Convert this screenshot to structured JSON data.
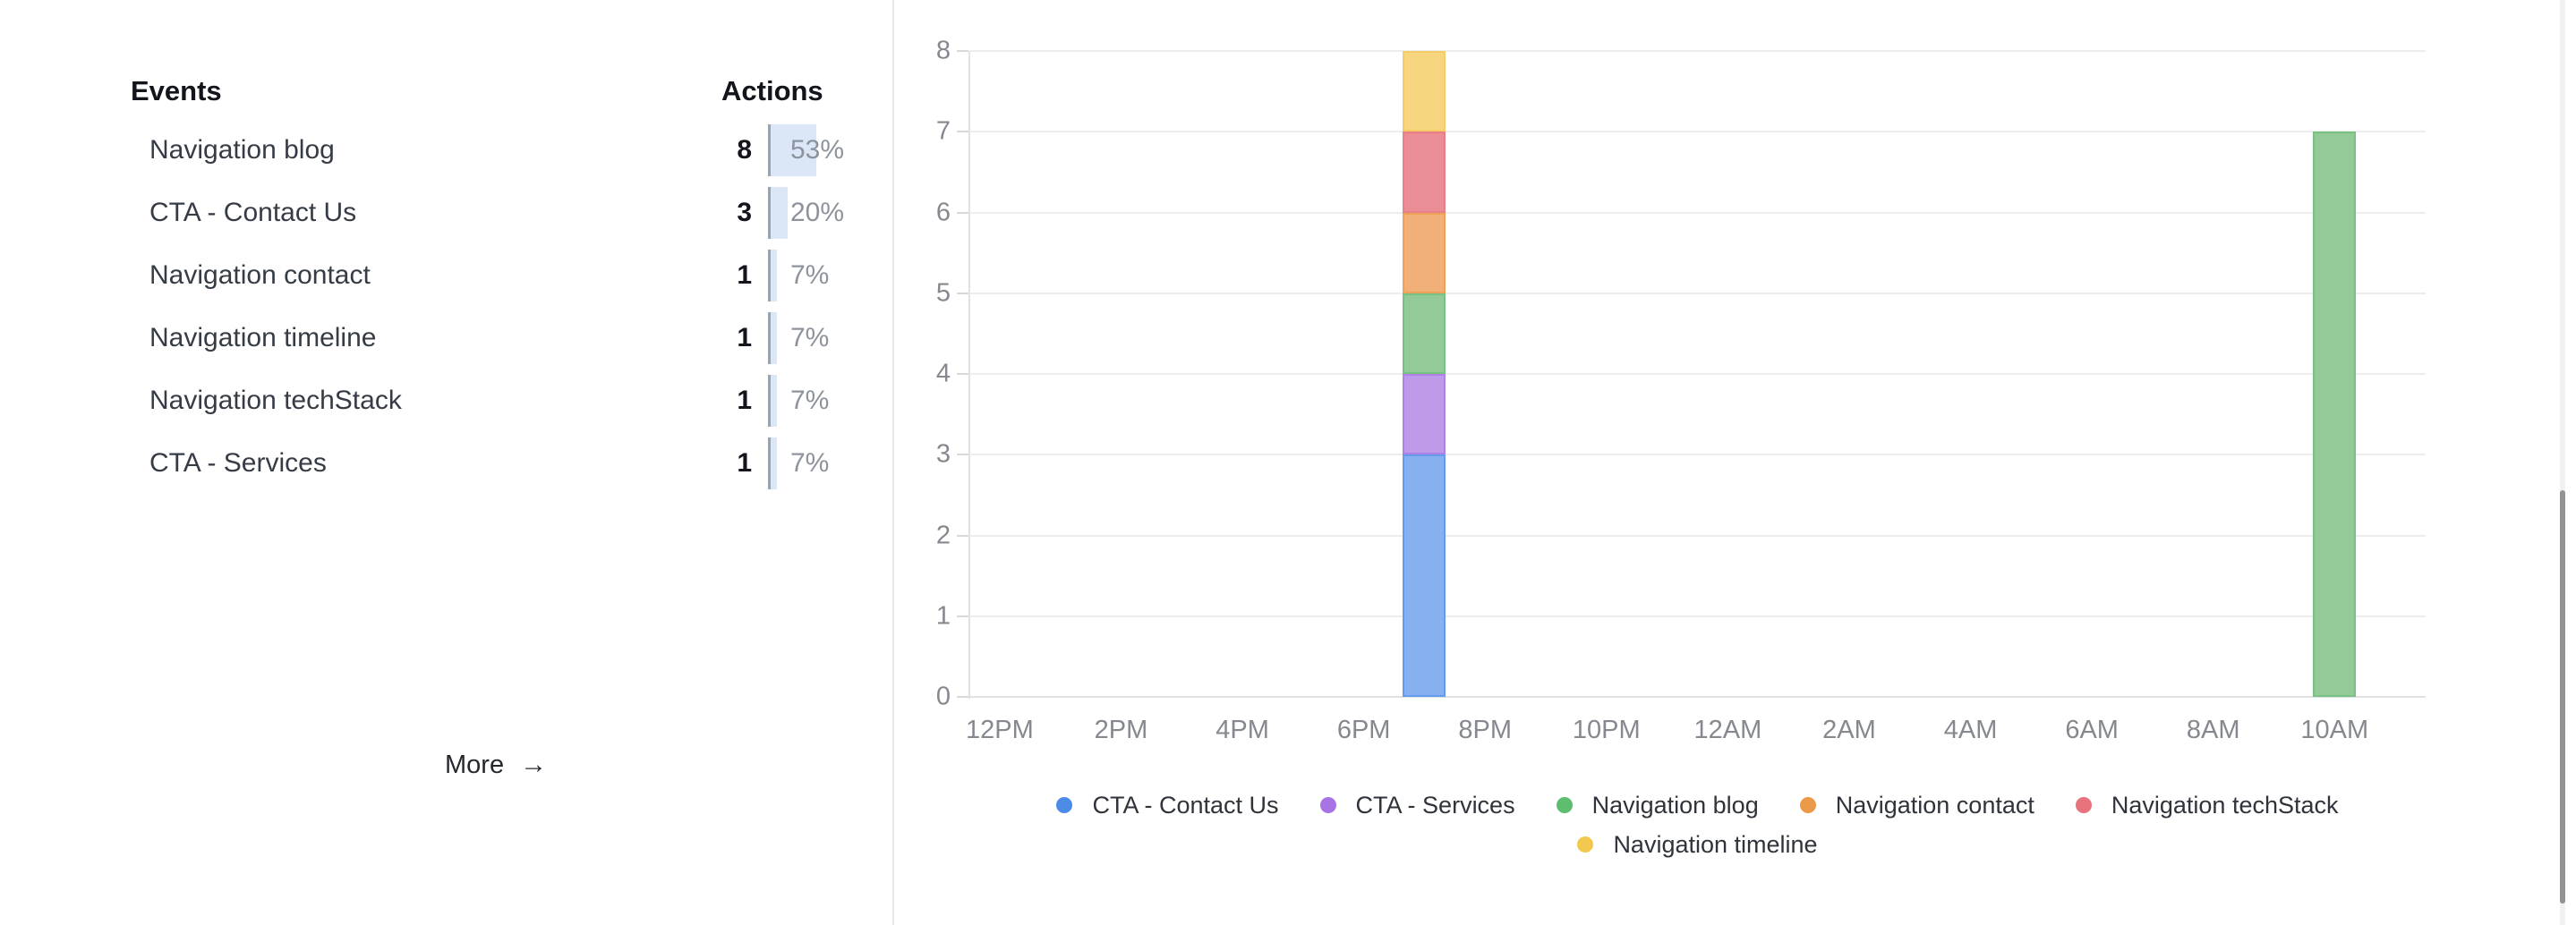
{
  "events_panel": {
    "events_header": "Events",
    "actions_header": "Actions",
    "rows": [
      {
        "name": "Navigation blog",
        "count": "8",
        "percent": "53%",
        "percent_value": 53
      },
      {
        "name": "CTA - Contact Us",
        "count": "3",
        "percent": "20%",
        "percent_value": 20
      },
      {
        "name": "Navigation contact",
        "count": "1",
        "percent": "7%",
        "percent_value": 7
      },
      {
        "name": "Navigation timeline",
        "count": "1",
        "percent": "7%",
        "percent_value": 7
      },
      {
        "name": "Navigation techStack",
        "count": "1",
        "percent": "7%",
        "percent_value": 7
      },
      {
        "name": "CTA - Services",
        "count": "1",
        "percent": "7%",
        "percent_value": 7
      }
    ],
    "more_label": "More",
    "more_arrow": "→"
  },
  "chart_data": {
    "type": "bar",
    "stacked": true,
    "title": "",
    "xlabel": "",
    "ylabel": "",
    "ylim": [
      0,
      8
    ],
    "y_tick_labels": [
      "0",
      "1",
      "2",
      "3",
      "4",
      "5",
      "6",
      "7",
      "8"
    ],
    "x_tick_labels": [
      "12PM",
      "2PM",
      "4PM",
      "6PM",
      "8PM",
      "10PM",
      "12AM",
      "2AM",
      "4AM",
      "6AM",
      "8AM",
      "10AM"
    ],
    "x_slots_total_hours": 24,
    "grid": true,
    "legend_position": "bottom-center",
    "series": [
      {
        "name": "CTA - Contact Us",
        "fill": "#87b0f1",
        "border": "#649bee",
        "dot": "#4b8ce8",
        "points": [
          {
            "hour_label": "7PM",
            "slot": 7,
            "value": 3
          }
        ]
      },
      {
        "name": "CTA - Services",
        "fill": "#bf9ae9",
        "border": "#af82e5",
        "dot": "#a873e5",
        "points": [
          {
            "hour_label": "7PM",
            "slot": 7,
            "value": 1
          }
        ]
      },
      {
        "name": "Navigation blog",
        "fill": "#93cb98",
        "border": "#77c283",
        "dot": "#5ebd6e",
        "points": [
          {
            "hour_label": "7PM",
            "slot": 7,
            "value": 1
          },
          {
            "hour_label": "10AM",
            "slot": 22,
            "value": 7
          }
        ]
      },
      {
        "name": "Navigation contact",
        "fill": "#f0b078",
        "border": "#eda257",
        "dot": "#eb9a47",
        "points": [
          {
            "hour_label": "7PM",
            "slot": 7,
            "value": 1
          }
        ]
      },
      {
        "name": "Navigation techStack",
        "fill": "#eb8d96",
        "border": "#e87e88",
        "dot": "#e8727b",
        "points": [
          {
            "hour_label": "7PM",
            "slot": 7,
            "value": 1
          }
        ]
      },
      {
        "name": "Navigation timeline",
        "fill": "#f7d67f",
        "border": "#f5cd66",
        "dot": "#f3c84e",
        "points": [
          {
            "hour_label": "7PM",
            "slot": 7,
            "value": 1
          }
        ]
      }
    ],
    "legend_rows": [
      [
        "CTA - Contact Us",
        "CTA - Services",
        "Navigation blog",
        "Navigation contact",
        "Navigation techStack"
      ],
      [
        "Navigation timeline"
      ]
    ]
  },
  "colors": {
    "quota_fill": "#dbe6f7",
    "quota_rule": "#9aa3ad",
    "grid": "#ededed",
    "axis": "#e1e1e1",
    "axis_label": "#85898f",
    "legend_text": "#2f333b",
    "scrollbar_thumb": "#929292"
  }
}
